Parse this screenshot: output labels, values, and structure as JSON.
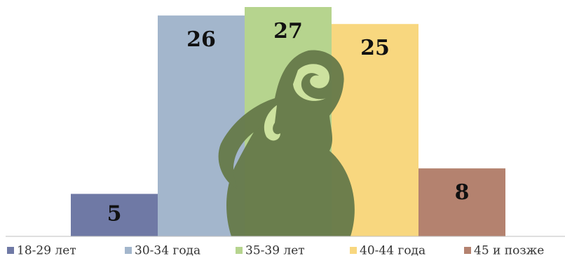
{
  "chart_data": {
    "type": "bar",
    "categories": [
      "18-29 лет",
      "30-34 года",
      "35-39 лет",
      "40-44 года",
      "45 и позже"
    ],
    "values": [
      5,
      26,
      27,
      25,
      8
    ],
    "colors": [
      "#6f79a5",
      "#a3b6cc",
      "#b6d48e",
      "#f8d77f",
      "#b4826f"
    ],
    "legend": "bottom"
  }
}
